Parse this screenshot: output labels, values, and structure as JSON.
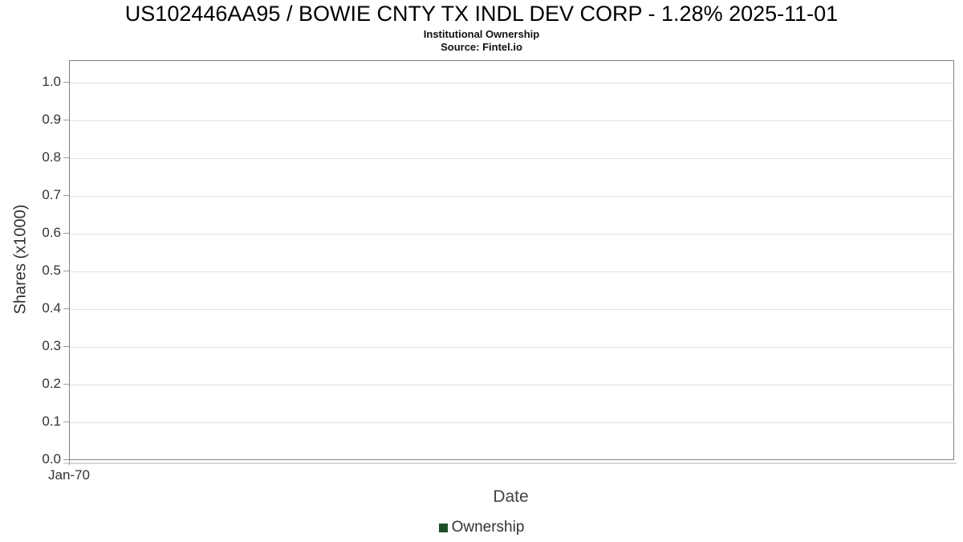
{
  "chart_data": {
    "type": "line",
    "title": "US102446AA95 / BOWIE CNTY TX INDL DEV CORP - 1.28% 2025-11-01",
    "subtitle": "Institutional Ownership",
    "source_label": "Source: Fintel.io",
    "xlabel": "Date",
    "ylabel": "Shares (x1000)",
    "x_ticks": [
      "Jan-70"
    ],
    "y_ticks": [
      "0.0",
      "0.1",
      "0.2",
      "0.3",
      "0.4",
      "0.5",
      "0.6",
      "0.7",
      "0.8",
      "0.9",
      "1.0"
    ],
    "ylim": [
      0.0,
      1.06
    ],
    "grid": "horizontal",
    "legend_position": "bottom-center",
    "series": [
      {
        "name": "Ownership",
        "color": "#1f4e24",
        "points": []
      }
    ]
  },
  "colors": {
    "plot_border": "#808080",
    "gridline": "#e2e2e2",
    "axis_line": "#dadada",
    "tick_mark": "#9a9a9a",
    "tick_text": "#333333",
    "title_text": "#000000",
    "legend_marker": "#1f4e24"
  }
}
